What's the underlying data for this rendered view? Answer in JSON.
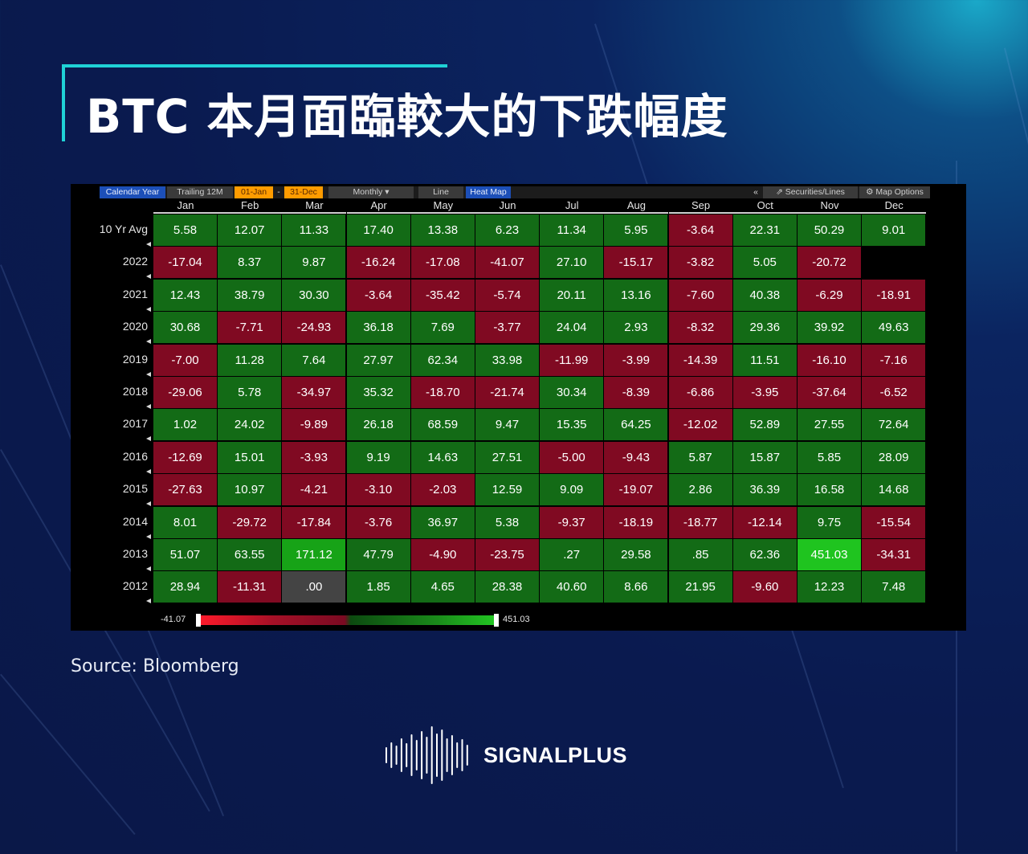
{
  "title": "BTC 本月面臨較大的下跌幅度",
  "toolbar": {
    "calendar_year": "Calendar Year",
    "trailing": "Trailing 12M",
    "start_date": "01-Jan",
    "dash": "-",
    "end_date": "31-Dec",
    "monthly": "Monthly ▾",
    "line": "Line",
    "heat_map": "Heat Map",
    "collapse": "«",
    "securities": "⇗ Securities/Lines",
    "map_options": "⚙ Map Options"
  },
  "chart_data": {
    "type": "heatmap",
    "columns": [
      "Jan",
      "Feb",
      "Mar",
      "Apr",
      "May",
      "Jun",
      "Jul",
      "Aug",
      "Sep",
      "Oct",
      "Nov",
      "Dec"
    ],
    "rows": [
      {
        "label": "10 Yr Avg",
        "values": [
          "5.58",
          "12.07",
          "11.33",
          "17.40",
          "13.38",
          "6.23",
          "11.34",
          "5.95",
          "-3.64",
          "22.31",
          "50.29",
          "9.01"
        ]
      },
      {
        "label": "2022",
        "values": [
          "-17.04",
          "8.37",
          "9.87",
          "-16.24",
          "-17.08",
          "-41.07",
          "27.10",
          "-15.17",
          "-3.82",
          "5.05",
          "-20.72",
          ""
        ]
      },
      {
        "label": "2021",
        "values": [
          "12.43",
          "38.79",
          "30.30",
          "-3.64",
          "-35.42",
          "-5.74",
          "20.11",
          "13.16",
          "-7.60",
          "40.38",
          "-6.29",
          "-18.91"
        ]
      },
      {
        "label": "2020",
        "values": [
          "30.68",
          "-7.71",
          "-24.93",
          "36.18",
          "7.69",
          "-3.77",
          "24.04",
          "2.93",
          "-8.32",
          "29.36",
          "39.92",
          "49.63"
        ]
      },
      {
        "label": "2019",
        "values": [
          "-7.00",
          "11.28",
          "7.64",
          "27.97",
          "62.34",
          "33.98",
          "-11.99",
          "-3.99",
          "-14.39",
          "11.51",
          "-16.10",
          "-7.16"
        ]
      },
      {
        "label": "2018",
        "values": [
          "-29.06",
          "5.78",
          "-34.97",
          "35.32",
          "-18.70",
          "-21.74",
          "30.34",
          "-8.39",
          "-6.86",
          "-3.95",
          "-37.64",
          "-6.52"
        ]
      },
      {
        "label": "2017",
        "values": [
          "1.02",
          "24.02",
          "-9.89",
          "26.18",
          "68.59",
          "9.47",
          "15.35",
          "64.25",
          "-12.02",
          "52.89",
          "27.55",
          "72.64"
        ]
      },
      {
        "label": "2016",
        "values": [
          "-12.69",
          "15.01",
          "-3.93",
          "9.19",
          "14.63",
          "27.51",
          "-5.00",
          "-9.43",
          "5.87",
          "15.87",
          "5.85",
          "28.09"
        ]
      },
      {
        "label": "2015",
        "values": [
          "-27.63",
          "10.97",
          "-4.21",
          "-3.10",
          "-2.03",
          "12.59",
          "9.09",
          "-19.07",
          "2.86",
          "36.39",
          "16.58",
          "14.68"
        ]
      },
      {
        "label": "2014",
        "values": [
          "8.01",
          "-29.72",
          "-17.84",
          "-3.76",
          "36.97",
          "5.38",
          "-9.37",
          "-18.19",
          "-18.77",
          "-12.14",
          "9.75",
          "-15.54"
        ]
      },
      {
        "label": "2013",
        "values": [
          "51.07",
          "63.55",
          "171.12",
          "47.79",
          "-4.90",
          "-23.75",
          ".27",
          "29.58",
          ".85",
          "62.36",
          "451.03",
          "-34.31"
        ]
      },
      {
        "label": "2012",
        "values": [
          "28.94",
          "-11.31",
          ".00",
          "1.85",
          "4.65",
          "28.38",
          "40.60",
          "8.66",
          "21.95",
          "-9.60",
          "12.23",
          "7.48"
        ]
      }
    ],
    "scale_min": "-41.07",
    "scale_max": "451.03",
    "colors": {
      "negative": "#800a22",
      "positive": "#136b16",
      "zero": "#444444",
      "strong_positive": "#1fc41f",
      "medium_positive": "#17a317"
    }
  },
  "source": "Source:  Bloomberg",
  "brand": "SIGNALPLUS"
}
